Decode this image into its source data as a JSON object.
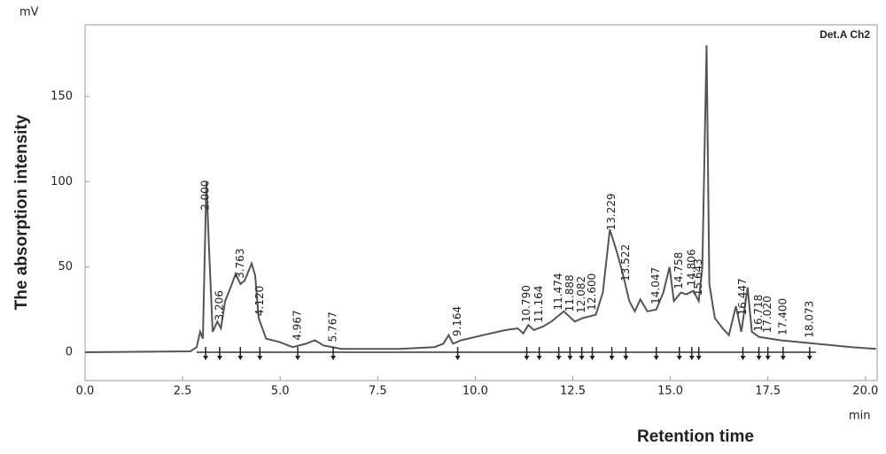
{
  "chart_data": {
    "type": "line",
    "y_unit": "mV",
    "x_unit": "min",
    "detector": "Det.A Ch2",
    "ylabel": "The absorption intensity",
    "xlabel": "Retention time",
    "xlim": [
      0,
      20.3
    ],
    "ylim": [
      -16.6,
      192
    ],
    "xticks": [
      {
        "value": 0,
        "label": "0.0"
      },
      2.5,
      {
        "value": 5,
        "label": "5.0"
      },
      7.5,
      {
        "value": 10,
        "label": "10.0"
      },
      12.5,
      {
        "value": 15,
        "label": "15.0"
      },
      17.5,
      {
        "value": 20,
        "label": "20.0"
      }
    ],
    "yticks": [
      0,
      50,
      100,
      150
    ],
    "x": [
      0,
      2.7,
      2.86,
      2.95,
      3.02,
      3.07,
      3.11,
      3.18,
      3.27,
      3.39,
      3.48,
      3.59,
      3.73,
      3.86,
      3.98,
      4.09,
      4.27,
      4.36,
      4.45,
      4.64,
      4.98,
      5.32,
      5.66,
      5.89,
      6.11,
      6.57,
      8.05,
      8.95,
      9.18,
      9.32,
      9.43,
      9.64,
      10.2,
      10.77,
      11.09,
      11.23,
      11.36,
      11.5,
      11.73,
      11.95,
      12.27,
      12.55,
      12.75,
      12.93,
      13.09,
      13.27,
      13.45,
      13.64,
      13.77,
      13.95,
      14.09,
      14.23,
      14.41,
      14.64,
      14.82,
      14.98,
      15.09,
      15.27,
      15.41,
      15.59,
      15.73,
      15.82,
      15.93,
      16.0,
      16.14,
      16.34,
      16.5,
      16.68,
      16.82,
      16.98,
      17.09,
      17.27,
      17.82,
      18.73,
      19.64,
      20.27
    ],
    "series": [
      {
        "name": "Det.A Ch2",
        "color": "#555555",
        "values": [
          0,
          0.5,
          3,
          12,
          8,
          60,
          100,
          60,
          12,
          18,
          14,
          30,
          38,
          46,
          40,
          42,
          52,
          45,
          20,
          8,
          6,
          3,
          5,
          7,
          4,
          2,
          2,
          3,
          5,
          10,
          5,
          7,
          10,
          13,
          14,
          11,
          16,
          13,
          15,
          18,
          24,
          18,
          20,
          21,
          22,
          35,
          72,
          58,
          47,
          30,
          24,
          31,
          24,
          25,
          35,
          50,
          30,
          35,
          34,
          36,
          30,
          50,
          180,
          40,
          20,
          14,
          10,
          27,
          12,
          38,
          12,
          9,
          7,
          5,
          3,
          2
        ]
      }
    ],
    "annotations": [
      {
        "text": "2.000",
        "x": 3.09
      },
      {
        "text": "3.206",
        "x": 3.45
      },
      {
        "text": "3.763",
        "x": 3.98
      },
      {
        "text": "4.120",
        "x": 4.48
      },
      {
        "text": "4.967",
        "x": 5.45
      },
      {
        "text": "5.767",
        "x": 6.36
      },
      {
        "text": "9.164",
        "x": 9.55
      },
      {
        "text": "10.790",
        "x": 11.32
      },
      {
        "text": "11.164",
        "x": 11.64
      },
      {
        "text": "11.474",
        "x": 12.14
      },
      {
        "text": "11.888",
        "x": 12.43
      },
      {
        "text": "12.082",
        "x": 12.73
      },
      {
        "text": "12.600",
        "x": 13.0
      },
      {
        "text": "13.229",
        "x": 13.5
      },
      {
        "text": "13.522",
        "x": 13.86
      },
      {
        "text": "14.047",
        "x": 14.64
      },
      {
        "text": "14.758",
        "x": 15.23
      },
      {
        "text": "14.806",
        "x": 15.55
      },
      {
        "text": "15.643",
        "x": 15.73
      },
      {
        "text": "16.447",
        "x": 16.86
      },
      {
        "text": "16.718",
        "x": 17.27
      },
      {
        "text": "17.020",
        "x": 17.5
      },
      {
        "text": "17.400",
        "x": 17.89
      },
      {
        "text": "18.073",
        "x": 18.57
      }
    ]
  }
}
